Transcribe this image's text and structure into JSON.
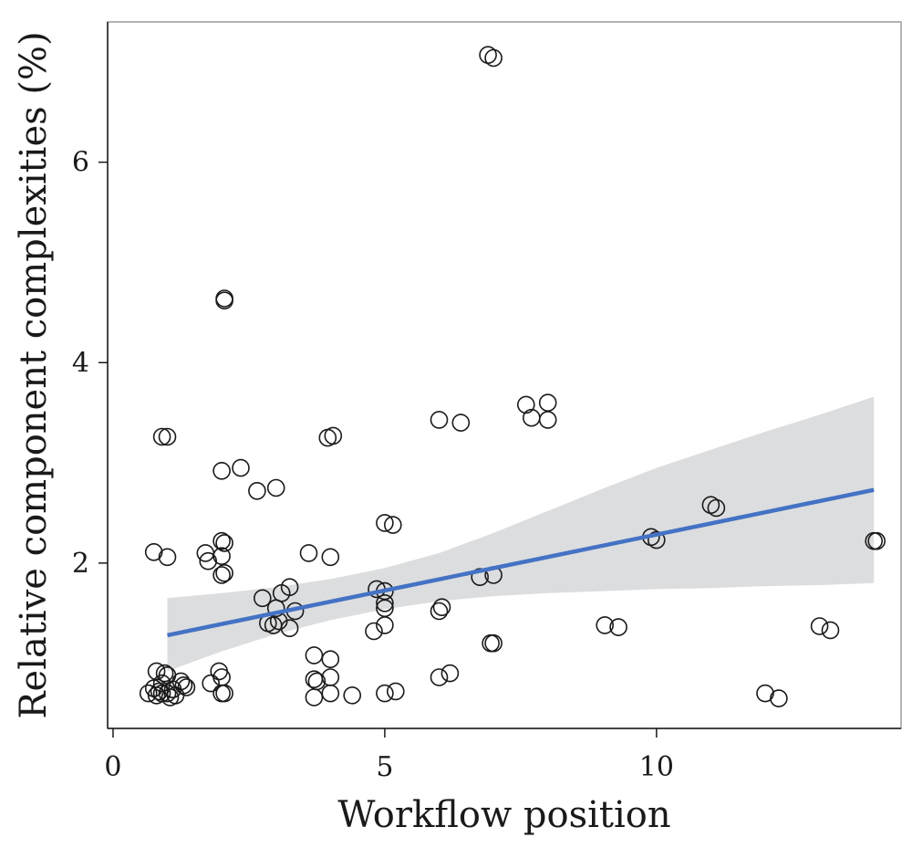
{
  "chart_data": {
    "type": "scatter",
    "title": "",
    "xlabel": "Workflow position",
    "ylabel": "Relative component complexities (%)",
    "xlim": [
      -0.1,
      14.5
    ],
    "ylim": [
      0.35,
      7.4
    ],
    "xticks": [
      0,
      5,
      10
    ],
    "xtick_labels": [
      "0",
      "5",
      "10"
    ],
    "yticks": [
      2,
      4,
      6
    ],
    "ytick_labels": [
      "2",
      "4",
      "6"
    ],
    "grid": false,
    "points": [
      [
        0.65,
        0.7
      ],
      [
        0.75,
        0.75
      ],
      [
        0.8,
        0.68
      ],
      [
        0.85,
        0.72
      ],
      [
        0.9,
        0.8
      ],
      [
        0.95,
        0.9
      ],
      [
        1.0,
        0.7
      ],
      [
        1.05,
        0.66
      ],
      [
        1.1,
        0.74
      ],
      [
        1.15,
        0.68
      ],
      [
        1.25,
        0.82
      ],
      [
        1.3,
        0.78
      ],
      [
        1.35,
        0.76
      ],
      [
        0.8,
        0.92
      ],
      [
        1.0,
        0.88
      ],
      [
        0.9,
        0.7
      ],
      [
        0.75,
        2.11
      ],
      [
        1.0,
        2.06
      ],
      [
        0.9,
        3.26
      ],
      [
        1.0,
        3.26
      ],
      [
        1.7,
        2.1
      ],
      [
        1.75,
        2.02
      ],
      [
        1.8,
        0.8
      ],
      [
        1.95,
        0.92
      ],
      [
        2.0,
        0.86
      ],
      [
        2.0,
        0.7
      ],
      [
        2.05,
        0.7
      ],
      [
        2.0,
        1.88
      ],
      [
        2.05,
        1.9
      ],
      [
        2.0,
        2.07
      ],
      [
        2.05,
        2.2
      ],
      [
        2.0,
        2.22
      ],
      [
        2.0,
        2.92
      ],
      [
        2.05,
        4.62
      ],
      [
        2.05,
        4.64
      ],
      [
        2.35,
        2.95
      ],
      [
        2.65,
        2.72
      ],
      [
        2.75,
        1.65
      ],
      [
        2.85,
        1.4
      ],
      [
        2.95,
        1.38
      ],
      [
        3.0,
        1.55
      ],
      [
        3.05,
        1.42
      ],
      [
        3.1,
        1.7
      ],
      [
        3.0,
        2.75
      ],
      [
        3.25,
        1.35
      ],
      [
        3.25,
        1.76
      ],
      [
        3.35,
        1.52
      ],
      [
        3.6,
        2.1
      ],
      [
        3.7,
        1.08
      ],
      [
        3.7,
        0.84
      ],
      [
        3.75,
        0.82
      ],
      [
        3.7,
        0.66
      ],
      [
        4.0,
        1.04
      ],
      [
        4.0,
        0.86
      ],
      [
        4.0,
        0.7
      ],
      [
        4.4,
        0.68
      ],
      [
        4.0,
        2.06
      ],
      [
        3.95,
        3.25
      ],
      [
        4.05,
        3.27
      ],
      [
        4.8,
        1.32
      ],
      [
        4.85,
        1.74
      ],
      [
        5.0,
        1.72
      ],
      [
        5.0,
        1.6
      ],
      [
        5.0,
        1.55
      ],
      [
        5.0,
        1.38
      ],
      [
        5.0,
        0.7
      ],
      [
        5.2,
        0.72
      ],
      [
        5.0,
        2.4
      ],
      [
        5.15,
        2.38
      ],
      [
        6.0,
        1.52
      ],
      [
        6.05,
        1.56
      ],
      [
        6.0,
        0.86
      ],
      [
        6.2,
        0.9
      ],
      [
        6.0,
        3.43
      ],
      [
        6.4,
        3.4
      ],
      [
        6.75,
        1.86
      ],
      [
        7.0,
        1.88
      ],
      [
        7.0,
        1.2
      ],
      [
        6.95,
        1.2
      ],
      [
        6.9,
        7.07
      ],
      [
        7.0,
        7.04
      ],
      [
        7.6,
        3.58
      ],
      [
        7.7,
        3.45
      ],
      [
        8.0,
        3.6
      ],
      [
        8.0,
        3.43
      ],
      [
        9.05,
        1.38
      ],
      [
        9.3,
        1.36
      ],
      [
        9.9,
        2.26
      ],
      [
        10.0,
        2.23
      ],
      [
        11.0,
        2.58
      ],
      [
        11.1,
        2.55
      ],
      [
        12.0,
        0.7
      ],
      [
        12.25,
        0.65
      ],
      [
        13.0,
        1.37
      ],
      [
        13.2,
        1.33
      ],
      [
        14.0,
        2.22
      ],
      [
        14.05,
        2.22
      ]
    ],
    "regression": {
      "x": [
        1,
        14
      ],
      "y": [
        1.28,
        2.73
      ],
      "color": "#4472c4"
    },
    "confidence_band": {
      "x": [
        1,
        2,
        3,
        4,
        5,
        6,
        7,
        8,
        9,
        10,
        11,
        12,
        13,
        14
      ],
      "lower": [
        0.92,
        1.12,
        1.29,
        1.43,
        1.54,
        1.62,
        1.67,
        1.7,
        1.72,
        1.74,
        1.75,
        1.77,
        1.78,
        1.8
      ],
      "upper": [
        1.65,
        1.7,
        1.76,
        1.84,
        1.95,
        2.1,
        2.3,
        2.52,
        2.74,
        2.95,
        3.13,
        3.31,
        3.48,
        3.66
      ],
      "color": "#dcdddf"
    },
    "marker": {
      "shape": "open-circle",
      "color": "#1a1a1a"
    }
  }
}
